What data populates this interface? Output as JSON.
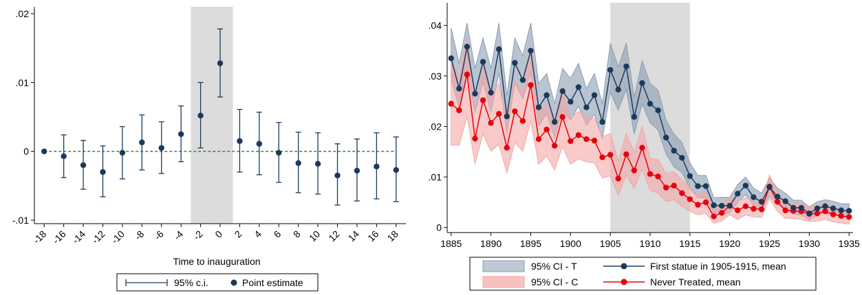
{
  "chart_data": [
    {
      "type": "scatter",
      "subtype": "event-study coefficient plot with 95% confidence intervals",
      "xlabel": "Time to inauguration",
      "x_ticks": [
        "-18",
        "-16",
        "-14",
        "-12",
        "-10",
        "-8",
        "-6",
        "-4",
        "-2",
        "0",
        "2",
        "4",
        "6",
        "8",
        "10",
        "12",
        "14",
        "16",
        "18"
      ],
      "y_ticks": [
        "-.01",
        "0",
        ".01",
        ".02"
      ],
      "xlim": [
        -19,
        19
      ],
      "ylim": [
        -0.0105,
        0.021
      ],
      "shaded_region": [
        -3,
        1.3
      ],
      "reference_line": {
        "y": 0,
        "color": "#2e8b2e",
        "style": "dashed"
      },
      "legend": {
        "position": "bottom",
        "entries": [
          "95% c.i.",
          "Point estimate"
        ]
      },
      "series": [
        {
          "name": "Point estimate",
          "color": "#1a3a5c",
          "x": [
            -18,
            -16,
            -14,
            -12,
            -10,
            -8,
            -6,
            -4,
            -2,
            0,
            2,
            4,
            6,
            8,
            10,
            12,
            14,
            16,
            18
          ],
          "y": [
            0,
            -0.0007,
            -0.002,
            -0.003,
            -0.0002,
            0.0013,
            0.0005,
            0.0025,
            0.0052,
            0.0128,
            0.0015,
            0.0011,
            -0.0002,
            -0.0017,
            -0.0018,
            -0.0035,
            -0.0028,
            -0.0022,
            -0.0027
          ],
          "ci_low": [
            null,
            -0.0038,
            -0.0055,
            -0.0066,
            -0.004,
            -0.0027,
            -0.0032,
            -0.0015,
            0.0005,
            0.0079,
            -0.003,
            -0.0034,
            -0.0045,
            -0.006,
            -0.0062,
            -0.0078,
            -0.0072,
            -0.0069,
            -0.0073
          ],
          "ci_high": [
            null,
            0.0024,
            0.0016,
            0.0008,
            0.0036,
            0.0053,
            0.0043,
            0.0066,
            0.01,
            0.0178,
            0.0061,
            0.0057,
            0.0042,
            0.0028,
            0.0027,
            0.0011,
            0.0018,
            0.0027,
            0.0021
          ]
        }
      ]
    },
    {
      "type": "line",
      "subtype": "line with shaded 95% confidence bands",
      "xlabel": "",
      "x_ticks": [
        "1885",
        "1890",
        "1895",
        "1900",
        "1905",
        "1910",
        "1915",
        "1920",
        "1925",
        "1930",
        "1935"
      ],
      "y_ticks": [
        "0",
        ".01",
        ".02",
        ".03",
        ".04"
      ],
      "xlim": [
        1884.5,
        1935.5
      ],
      "ylim": [
        -0.001,
        0.0445
      ],
      "shaded_region": [
        1905,
        1915
      ],
      "legend": {
        "position": "bottom",
        "entries": [
          "95% CI - T",
          "First statue in 1905-1915, mean",
          "95% CI - C",
          "Never Treated, mean"
        ]
      },
      "x": [
        1885,
        1886,
        1887,
        1888,
        1889,
        1890,
        1891,
        1892,
        1893,
        1894,
        1895,
        1896,
        1897,
        1898,
        1899,
        1900,
        1901,
        1902,
        1903,
        1904,
        1905,
        1906,
        1907,
        1908,
        1909,
        1910,
        1911,
        1912,
        1913,
        1914,
        1915,
        1916,
        1917,
        1918,
        1919,
        1920,
        1921,
        1922,
        1923,
        1924,
        1925,
        1926,
        1927,
        1928,
        1929,
        1930,
        1931,
        1932,
        1933,
        1934,
        1935
      ],
      "series": [
        {
          "name": "First statue in 1905-1915, mean",
          "ci_name": "95% CI - T",
          "color": "#1a3a5c",
          "band_color": "#8a9db3",
          "values": [
            0.0335,
            0.0275,
            0.0358,
            0.0265,
            0.0328,
            0.0267,
            0.0353,
            0.022,
            0.0326,
            0.0292,
            0.035,
            0.0238,
            0.0262,
            0.0209,
            0.027,
            0.0249,
            0.0278,
            0.0238,
            0.0262,
            0.0209,
            0.0312,
            0.0273,
            0.0319,
            0.0219,
            0.0286,
            0.0245,
            0.0232,
            0.0178,
            0.0152,
            0.0138,
            0.0102,
            0.0082,
            0.0082,
            0.0044,
            0.0043,
            0.0043,
            0.0067,
            0.0083,
            0.006,
            0.0051,
            0.008,
            0.0061,
            0.0052,
            0.0039,
            0.0039,
            0.0028,
            0.0038,
            0.0042,
            0.0038,
            0.0034,
            0.0033
          ],
          "ci_low": [
            0.0295,
            0.0237,
            0.0313,
            0.0227,
            0.0288,
            0.0229,
            0.0306,
            0.0186,
            0.0286,
            0.0255,
            0.0306,
            0.0202,
            0.0225,
            0.0178,
            0.0232,
            0.0212,
            0.024,
            0.0203,
            0.0224,
            0.0176,
            0.0268,
            0.0232,
            0.0274,
            0.0185,
            0.0245,
            0.0207,
            0.0193,
            0.0146,
            0.012,
            0.0109,
            0.0077,
            0.0059,
            0.0059,
            0.0029,
            0.0027,
            0.0029,
            0.005,
            0.0065,
            0.0043,
            0.0035,
            0.0063,
            0.0045,
            0.0037,
            0.0026,
            0.0025,
            0.0015,
            0.0025,
            0.0029,
            0.0026,
            0.0021,
            0.002
          ],
          "ci_high": [
            0.0395,
            0.0325,
            0.0405,
            0.0315,
            0.0375,
            0.0315,
            0.0405,
            0.026,
            0.0375,
            0.034,
            0.0405,
            0.0285,
            0.0305,
            0.0245,
            0.0315,
            0.0295,
            0.0325,
            0.0275,
            0.0305,
            0.0245,
            0.0365,
            0.0318,
            0.0365,
            0.0258,
            0.033,
            0.0285,
            0.0272,
            0.0212,
            0.0185,
            0.0168,
            0.0128,
            0.0103,
            0.0103,
            0.0059,
            0.006,
            0.006,
            0.0085,
            0.01,
            0.0078,
            0.0068,
            0.0098,
            0.0078,
            0.0068,
            0.0054,
            0.0054,
            0.0041,
            0.0051,
            0.0055,
            0.0052,
            0.0047,
            0.0047
          ]
        },
        {
          "name": "Never Treated, mean",
          "ci_name": "95% CI - C",
          "color": "#e8000b",
          "band_color": "#f4a6a6",
          "values": [
            0.0245,
            0.0232,
            0.0303,
            0.0176,
            0.0252,
            0.0207,
            0.0225,
            0.0158,
            0.023,
            0.0211,
            0.0282,
            0.0175,
            0.0194,
            0.0162,
            0.0219,
            0.0171,
            0.0183,
            0.0175,
            0.0172,
            0.0139,
            0.0144,
            0.0097,
            0.0145,
            0.0113,
            0.0158,
            0.0106,
            0.0101,
            0.0079,
            0.0083,
            0.0068,
            0.0056,
            0.0045,
            0.005,
            0.0022,
            0.0029,
            0.0043,
            0.0034,
            0.0042,
            0.0037,
            0.0036,
            0.0081,
            0.0051,
            0.0034,
            0.0033,
            0.0032,
            0.0027,
            0.0028,
            0.0032,
            0.0026,
            0.0023,
            0.0021
          ],
          "ci_low": [
            0.0163,
            0.0163,
            0.022,
            0.0126,
            0.0185,
            0.0151,
            0.0165,
            0.0108,
            0.0168,
            0.0151,
            0.0211,
            0.0125,
            0.0142,
            0.0114,
            0.016,
            0.0125,
            0.0136,
            0.013,
            0.0128,
            0.0098,
            0.0102,
            0.0063,
            0.0104,
            0.0077,
            0.0116,
            0.0074,
            0.0068,
            0.0051,
            0.0055,
            0.0042,
            0.0032,
            0.0025,
            0.0028,
            0.0008,
            0.0013,
            0.0025,
            0.0016,
            0.0025,
            0.0021,
            0.002,
            0.0058,
            0.0032,
            0.0018,
            0.0018,
            0.0016,
            0.0012,
            0.0013,
            0.0016,
            0.0011,
            0.0009,
            0.0007
          ],
          "ci_high": [
            0.0327,
            0.0301,
            0.0375,
            0.0226,
            0.0319,
            0.0263,
            0.0285,
            0.0208,
            0.0292,
            0.0271,
            0.0355,
            0.0225,
            0.0246,
            0.021,
            0.0278,
            0.0217,
            0.023,
            0.022,
            0.0216,
            0.018,
            0.0186,
            0.0131,
            0.0186,
            0.0149,
            0.02,
            0.0138,
            0.0134,
            0.0107,
            0.0111,
            0.0094,
            0.008,
            0.0065,
            0.0072,
            0.0036,
            0.0045,
            0.0061,
            0.0052,
            0.0059,
            0.0053,
            0.0052,
            0.0104,
            0.007,
            0.005,
            0.0048,
            0.0048,
            0.0042,
            0.0043,
            0.0048,
            0.0041,
            0.0037,
            0.0035
          ]
        }
      ]
    }
  ]
}
